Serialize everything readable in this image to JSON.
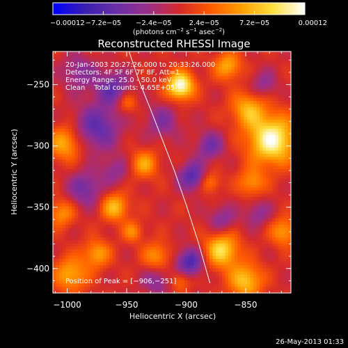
{
  "chart_data": {
    "type": "heatmap",
    "title": "Reconstructed RHESSI Image",
    "xlabel": "Heliocentric X (arcsec)",
    "ylabel": "Heliocentric Y (arcsec)",
    "xlim": [
      -1012,
      -812
    ],
    "ylim": [
      -420,
      -223
    ],
    "x_ticks": [
      -1000,
      -950,
      -900,
      -850
    ],
    "x_tick_labels": [
      "−1000",
      "−950",
      "−900",
      "−850"
    ],
    "y_ticks": [
      -250,
      -300,
      -350,
      -400
    ],
    "y_tick_labels": [
      "−250",
      "−300",
      "−350",
      "−400"
    ],
    "colorbar": {
      "min": -0.00012,
      "max": 0.00012,
      "ticks": [
        -0.00012,
        -7.2e-05,
        -2.4e-05,
        2.4e-05,
        7.2e-05,
        0.00012
      ],
      "tick_labels": [
        "−0.00012",
        "−7.2e−05",
        "−2.4e−05",
        "2.4e−05",
        "7.2e−05",
        "0.00012"
      ],
      "units_html": "(photons cm<tspan baseline-shift='super' font-size='7'>−2</tspan> s<tspan baseline-shift='super' font-size='7'>−1</tspan> asec<tspan baseline-shift='super' font-size='7'>−2</tspan>)",
      "colors": [
        "#0000ff",
        "#3a1fb0",
        "#6a2fa8",
        "#9a2e8a",
        "#d42a2a",
        "#ff5a00",
        "#ffa000",
        "#ffe040",
        "#ffffff"
      ]
    },
    "info_lines": [
      "20-Jan-2003 20:27:26.000 to 20:33:26.000",
      "Detectors: 4F 5F 6F 7F 8F, Att=1",
      "Energy Range: 25.0 - 50.0 keV",
      "Clean    Total counts: 4.65E+05"
    ],
    "peak_label": "Position of Peak = [−906,−251]",
    "peak": [
      -906,
      -251
    ],
    "limb_line": {
      "x": [
        -948,
        -940,
        -930,
        -920,
        -910,
        -900,
        -890,
        -880
      ],
      "y": [
        -223,
        -246,
        -270,
        -295,
        -320,
        -348,
        -378,
        -412
      ]
    },
    "sources": [
      {
        "x": -905,
        "y": -251,
        "v": 1.0,
        "s": 8
      },
      {
        "x": -828,
        "y": -295,
        "v": 0.95,
        "s": 14
      },
      {
        "x": -848,
        "y": -270,
        "v": 0.55,
        "s": 10
      },
      {
        "x": -870,
        "y": -385,
        "v": 0.75,
        "s": 10
      },
      {
        "x": -850,
        "y": -410,
        "v": 0.65,
        "s": 10
      },
      {
        "x": -960,
        "y": -350,
        "v": 0.6,
        "s": 8
      },
      {
        "x": -1002,
        "y": -298,
        "v": 0.55,
        "s": 10
      },
      {
        "x": -997,
        "y": -405,
        "v": 0.55,
        "s": 10
      },
      {
        "x": -975,
        "y": -388,
        "v": 0.5,
        "s": 8
      },
      {
        "x": -1005,
        "y": -355,
        "v": 0.45,
        "s": 8
      },
      {
        "x": -935,
        "y": -315,
        "v": 0.5,
        "s": 8
      },
      {
        "x": -925,
        "y": -390,
        "v": 0.45,
        "s": 8
      },
      {
        "x": -905,
        "y": -410,
        "v": 0.35,
        "s": 6
      },
      {
        "x": -865,
        "y": -235,
        "v": 0.55,
        "s": 8
      },
      {
        "x": -818,
        "y": -370,
        "v": 0.5,
        "s": 8
      },
      {
        "x": -845,
        "y": -330,
        "v": 0.45,
        "s": 8
      },
      {
        "x": -880,
        "y": -330,
        "v": 0.4,
        "s": 6
      },
      {
        "x": -945,
        "y": -370,
        "v": 0.4,
        "s": 6
      },
      {
        "x": -950,
        "y": -265,
        "v": 0.35,
        "s": 6
      },
      {
        "x": -975,
        "y": -285,
        "v": -0.55,
        "s": 13
      },
      {
        "x": -962,
        "y": -253,
        "v": -0.5,
        "s": 10
      },
      {
        "x": -985,
        "y": -335,
        "v": -0.45,
        "s": 10
      },
      {
        "x": -920,
        "y": -280,
        "v": -0.35,
        "s": 10
      },
      {
        "x": -895,
        "y": -325,
        "v": -0.6,
        "s": 8
      },
      {
        "x": -880,
        "y": -300,
        "v": -0.45,
        "s": 8
      },
      {
        "x": -897,
        "y": -395,
        "v": -0.65,
        "s": 8
      },
      {
        "x": -925,
        "y": -410,
        "v": -0.35,
        "s": 8
      },
      {
        "x": -960,
        "y": -320,
        "v": -0.3,
        "s": 8
      },
      {
        "x": -870,
        "y": -360,
        "v": -0.35,
        "s": 8
      },
      {
        "x": -840,
        "y": -355,
        "v": -0.3,
        "s": 8
      },
      {
        "x": -835,
        "y": -250,
        "v": -0.3,
        "s": 8
      },
      {
        "x": -990,
        "y": -240,
        "v": -0.35,
        "s": 10
      }
    ]
  },
  "footer_timestamp": "26-May-2013 01:33"
}
